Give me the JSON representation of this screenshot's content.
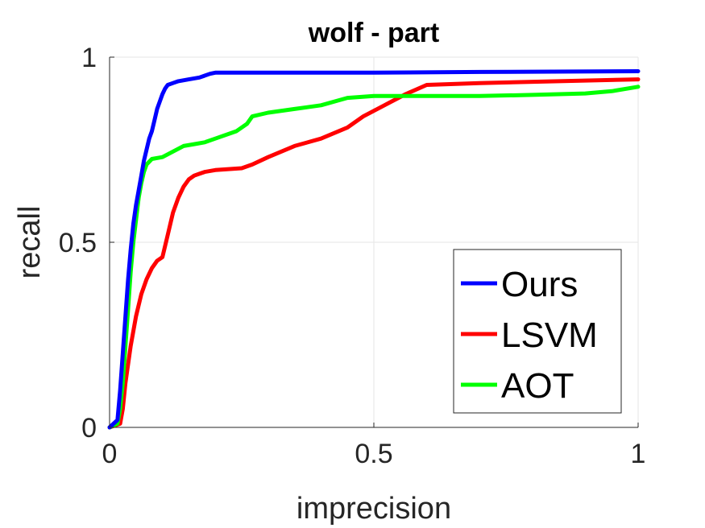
{
  "chart_data": {
    "type": "line",
    "title": "wolf - part",
    "xlabel": "imprecision",
    "ylabel": "recall",
    "xlim": [
      0,
      1
    ],
    "ylim": [
      0,
      1
    ],
    "xticks": [
      0,
      0.5,
      1
    ],
    "xtick_labels": [
      "0",
      "0.5",
      "1"
    ],
    "yticks": [
      0,
      0.5,
      1
    ],
    "ytick_labels": [
      "0",
      "0.5",
      "1"
    ],
    "grid": true,
    "legend_position": "bottom-right",
    "series": [
      {
        "name": "Ours",
        "color": "#0000ff",
        "x": [
          0,
          0.015,
          0.02,
          0.025,
          0.03,
          0.035,
          0.04,
          0.045,
          0.05,
          0.055,
          0.06,
          0.065,
          0.07,
          0.075,
          0.08,
          0.085,
          0.09,
          0.095,
          0.1,
          0.105,
          0.11,
          0.12,
          0.13,
          0.15,
          0.17,
          0.19,
          0.2,
          0.3,
          0.5,
          0.7,
          1.0
        ],
        "y": [
          0,
          0.02,
          0.1,
          0.2,
          0.3,
          0.4,
          0.48,
          0.55,
          0.6,
          0.64,
          0.68,
          0.72,
          0.75,
          0.78,
          0.8,
          0.83,
          0.86,
          0.88,
          0.9,
          0.915,
          0.925,
          0.93,
          0.935,
          0.94,
          0.945,
          0.955,
          0.958,
          0.958,
          0.958,
          0.96,
          0.962
        ]
      },
      {
        "name": "LSVM",
        "color": "#ff0000",
        "x": [
          0,
          0.02,
          0.025,
          0.03,
          0.04,
          0.05,
          0.06,
          0.07,
          0.08,
          0.09,
          0.1,
          0.11,
          0.12,
          0.13,
          0.14,
          0.15,
          0.16,
          0.17,
          0.18,
          0.2,
          0.25,
          0.27,
          0.3,
          0.35,
          0.4,
          0.45,
          0.48,
          0.52,
          0.56,
          0.6,
          0.7,
          1.0
        ],
        "y": [
          0,
          0.01,
          0.05,
          0.12,
          0.22,
          0.3,
          0.36,
          0.4,
          0.43,
          0.45,
          0.46,
          0.52,
          0.58,
          0.62,
          0.65,
          0.67,
          0.68,
          0.685,
          0.69,
          0.695,
          0.7,
          0.71,
          0.73,
          0.76,
          0.78,
          0.81,
          0.84,
          0.87,
          0.9,
          0.925,
          0.93,
          0.94
        ]
      },
      {
        "name": "AOT",
        "color": "#00ff00",
        "x": [
          0,
          0.015,
          0.02,
          0.025,
          0.03,
          0.035,
          0.04,
          0.045,
          0.05,
          0.055,
          0.06,
          0.065,
          0.07,
          0.08,
          0.1,
          0.12,
          0.14,
          0.16,
          0.18,
          0.2,
          0.24,
          0.26,
          0.27,
          0.3,
          0.35,
          0.4,
          0.45,
          0.5,
          0.6,
          0.7,
          0.8,
          0.9,
          0.95,
          1.0
        ],
        "y": [
          0,
          0.01,
          0.05,
          0.12,
          0.22,
          0.32,
          0.42,
          0.5,
          0.56,
          0.62,
          0.66,
          0.69,
          0.71,
          0.725,
          0.73,
          0.745,
          0.76,
          0.765,
          0.77,
          0.78,
          0.8,
          0.82,
          0.84,
          0.85,
          0.86,
          0.87,
          0.89,
          0.895,
          0.895,
          0.895,
          0.898,
          0.902,
          0.908,
          0.92
        ]
      }
    ]
  }
}
